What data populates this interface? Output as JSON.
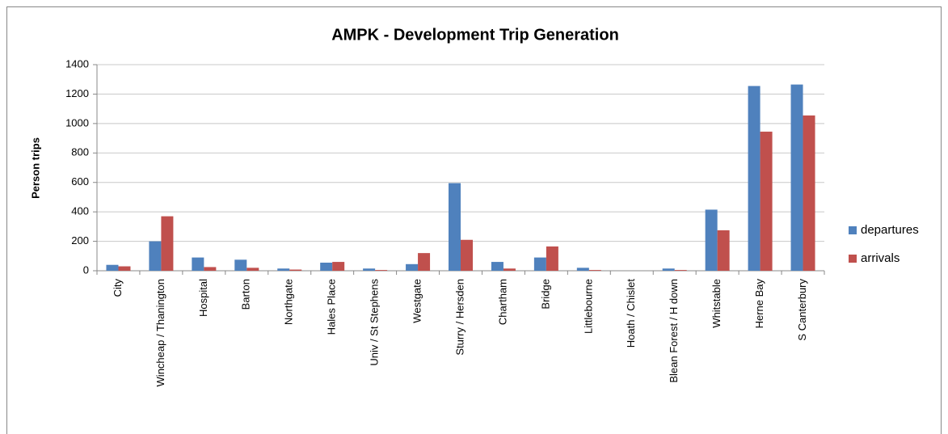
{
  "chart_data": {
    "type": "bar",
    "title": "AMPK - Development Trip Generation",
    "y_label": "Person trips",
    "categories": [
      "City",
      "Wincheap / Thanington",
      "Hospital",
      "Barton",
      "Northgate",
      "Hales Place",
      "Univ / St Stephens",
      "Westgate",
      "Sturry / Hersden",
      "Chartham",
      "Bridge",
      "Littlebourne",
      "Hoath / Chislet",
      "Blean Forest / H down",
      "Whitstable",
      "Herne Bay",
      "S Canterbury"
    ],
    "series": [
      {
        "name": "departures",
        "color": "#4f81bd",
        "values": [
          40,
          200,
          90,
          75,
          15,
          55,
          15,
          45,
          595,
          60,
          90,
          20,
          0,
          15,
          415,
          1255,
          1265
        ]
      },
      {
        "name": "arrivals",
        "color": "#c0504d",
        "values": [
          30,
          370,
          25,
          20,
          8,
          60,
          5,
          120,
          210,
          15,
          165,
          5,
          0,
          5,
          275,
          945,
          1055
        ]
      }
    ],
    "ylim": [
      0,
      1400
    ],
    "yticks": [
      0,
      200,
      400,
      600,
      800,
      1000,
      1200,
      1400
    ],
    "grid": true,
    "legend": "right"
  }
}
